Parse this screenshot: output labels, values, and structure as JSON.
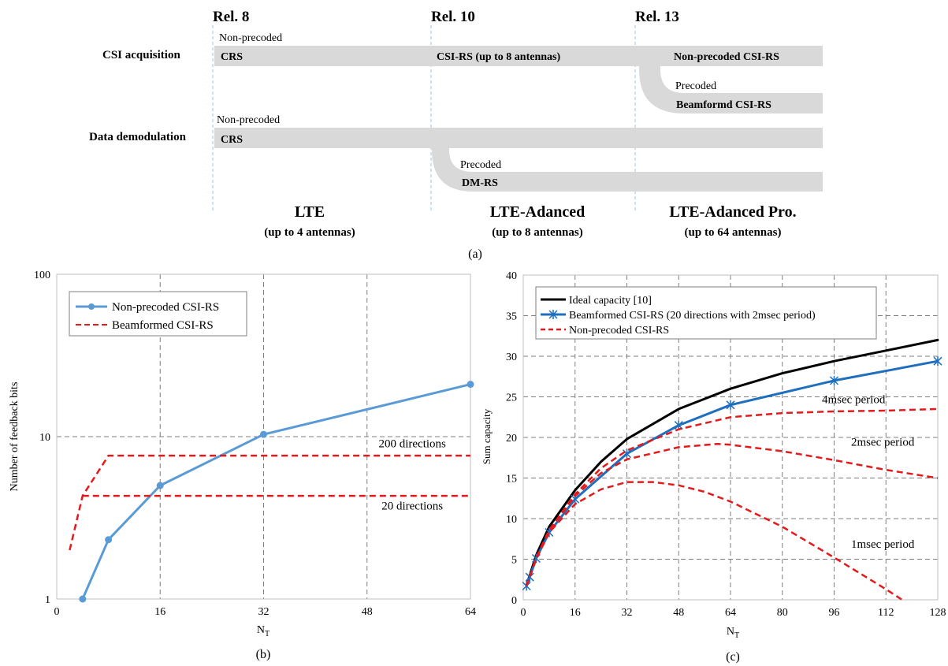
{
  "diagram": {
    "caption": "(a)",
    "releases": [
      "Rel. 8",
      "Rel. 10",
      "Rel. 13"
    ],
    "row_labels": {
      "csi": "CSI acquisition",
      "data": "Data demodulation"
    },
    "csi": {
      "nonprecoded": "Non-precoded",
      "crs": "CRS",
      "csirs": "CSI-RS (up to 8 antennas)",
      "nonprecoded_csirs": "Non-precoded CSI-RS",
      "precoded": "Precoded",
      "beamformed_csirs": "Beamformd CSI-RS"
    },
    "data": {
      "nonprecoded": "Non-precoded",
      "crs": "CRS",
      "precoded": "Precoded",
      "dmrs": "DM-RS"
    },
    "generations": [
      {
        "name": "LTE",
        "sub": "(up to 4 antennas)"
      },
      {
        "name": "LTE-Adanced",
        "sub": "(up to 8 antennas)"
      },
      {
        "name": "LTE-Adanced Pro.",
        "sub": "(up to 64 antennas)"
      }
    ]
  },
  "chart_data": [
    {
      "type": "line",
      "caption": "(b)",
      "xlabel_base": "N",
      "xlabel_sub": "T",
      "ylabel": "Number of feedback bits",
      "yscale": "log",
      "xlim": [
        0,
        64
      ],
      "ylim": [
        1,
        100
      ],
      "xticks": [
        0,
        16,
        32,
        48,
        64
      ],
      "yticks": [
        1,
        10,
        100
      ],
      "grid": true,
      "legend_position": "top-left",
      "series": [
        {
          "name": "Non-precoded CSI-RS",
          "color": "#5b9bd5",
          "style": "solid-markers",
          "x": [
            4,
            8,
            16,
            32,
            64
          ],
          "y": [
            1.0,
            2.32,
            5.0,
            10.32,
            21.0
          ]
        },
        {
          "name": "Beamformed CSI-RS",
          "color": "#e31a1c",
          "style": "dashed",
          "x": [
            2,
            4,
            8,
            64
          ],
          "y": [
            2.0,
            4.32,
            7.64,
            7.64
          ]
        },
        {
          "name": "",
          "color": "#e31a1c",
          "style": "dashed",
          "x": [
            4,
            64
          ],
          "y": [
            4.32,
            4.32
          ]
        }
      ],
      "annotations": [
        {
          "text": "200 directions",
          "x": 55,
          "y": 8.6
        },
        {
          "text": "20 directions",
          "x": 55,
          "y": 3.55
        }
      ]
    },
    {
      "type": "line",
      "caption": "(c)",
      "xlabel_base": "N",
      "xlabel_sub": "T",
      "ylabel": "Sum capacity",
      "xlim": [
        0,
        128
      ],
      "ylim": [
        0,
        40
      ],
      "xticks": [
        0,
        16,
        32,
        48,
        64,
        80,
        96,
        112,
        128
      ],
      "yticks": [
        0,
        5,
        10,
        15,
        20,
        25,
        30,
        35,
        40
      ],
      "grid": true,
      "legend_position": "top-left",
      "series": [
        {
          "name": "Ideal capacity [10]",
          "color": "#000000",
          "style": "solid",
          "x": [
            1,
            2,
            4,
            8,
            16,
            24,
            32,
            48,
            64,
            80,
            96,
            112,
            128
          ],
          "y": [
            1.8,
            3.0,
            5.5,
            9.0,
            13.5,
            17.0,
            19.8,
            23.5,
            26.0,
            27.9,
            29.4,
            30.7,
            32.0
          ]
        },
        {
          "name": "Beamformed CSI-RS (20 directions with 2msec period)",
          "color": "#1f6fbf",
          "style": "solid-x",
          "x": [
            1,
            2,
            4,
            8,
            16,
            32,
            48,
            64,
            96,
            128
          ],
          "y": [
            1.7,
            2.8,
            5.1,
            8.3,
            12.4,
            18.0,
            21.5,
            24.0,
            27.0,
            29.4
          ]
        },
        {
          "name": "Non-precoded CSI-RS",
          "color": "#e31a1c",
          "style": "dashed",
          "x": [
            1,
            2,
            4,
            8,
            16,
            24,
            32,
            48,
            64,
            80,
            96,
            112,
            128
          ],
          "y": [
            1.7,
            2.8,
            5.2,
            8.6,
            13.0,
            16.2,
            18.4,
            21.0,
            22.5,
            23.0,
            23.2,
            23.3,
            23.5
          ]
        },
        {
          "name": "",
          "color": "#e31a1c",
          "style": "dashed",
          "x": [
            1,
            2,
            4,
            8,
            16,
            24,
            32,
            48,
            60,
            64,
            80,
            96,
            112,
            128
          ],
          "y": [
            1.7,
            2.8,
            5.1,
            8.5,
            12.8,
            15.6,
            17.3,
            18.8,
            19.2,
            19.1,
            18.3,
            17.2,
            16.0,
            15.0
          ]
        },
        {
          "name": "",
          "color": "#e31a1c",
          "style": "dashed",
          "x": [
            1,
            2,
            4,
            8,
            16,
            24,
            32,
            40,
            48,
            56,
            64,
            80,
            96,
            112,
            117
          ],
          "y": [
            1.7,
            2.8,
            5.0,
            8.3,
            11.8,
            13.6,
            14.5,
            14.5,
            14.1,
            13.3,
            12.1,
            9.0,
            5.2,
            1.3,
            0.0
          ]
        }
      ],
      "annotations": [
        {
          "text": "4msec period",
          "x": 102,
          "y": 24.2
        },
        {
          "text": "2msec period",
          "x": 111,
          "y": 19.0
        },
        {
          "text": "1msec period",
          "x": 111,
          "y": 6.4
        }
      ]
    }
  ]
}
